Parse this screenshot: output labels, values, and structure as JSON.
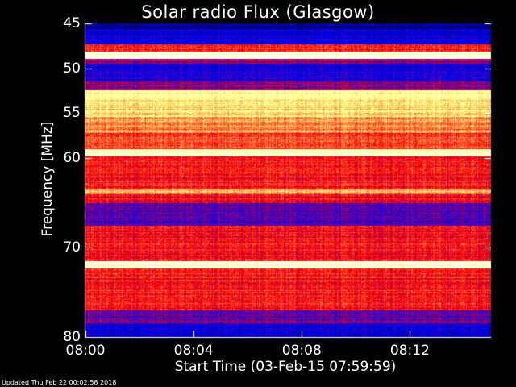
{
  "chart_data": {
    "type": "heatmap",
    "title": "Solar radio Flux (Glasgow)",
    "xlabel": "Start Time (03-Feb-15 07:59:59)",
    "ylabel": "Frequency [MHz]",
    "y_axis_range": [
      45,
      80
    ],
    "y_axis_inverted": true,
    "x_axis_range_minutes": [
      0,
      15
    ],
    "y_ticks": [
      {
        "value": 45,
        "label": "45"
      },
      {
        "value": 50,
        "label": "50"
      },
      {
        "value": 55,
        "label": "55"
      },
      {
        "value": 60,
        "label": "60"
      },
      {
        "value": 70,
        "label": "70"
      },
      {
        "value": 80,
        "label": "80"
      }
    ],
    "x_ticks": [
      {
        "minute": 0,
        "label": "08:00"
      },
      {
        "minute": 4,
        "label": "08:04"
      },
      {
        "minute": 8,
        "label": "08:08"
      },
      {
        "minute": 12,
        "label": "08:12"
      }
    ],
    "colormap": [
      "#000040",
      "#0000ff",
      "#ff0000",
      "#ffff80",
      "#ffffff"
    ],
    "frequency_bands": [
      {
        "from": 45.0,
        "to": 45.6,
        "level": 0.12
      },
      {
        "from": 45.6,
        "to": 47.3,
        "level": 0.22
      },
      {
        "from": 47.3,
        "to": 48.1,
        "level": 0.55
      },
      {
        "from": 48.1,
        "to": 48.9,
        "level": 0.93
      },
      {
        "from": 48.9,
        "to": 49.5,
        "level": 0.4
      },
      {
        "from": 49.5,
        "to": 51.4,
        "level": 0.25
      },
      {
        "from": 51.4,
        "to": 52.4,
        "level": 0.38
      },
      {
        "from": 52.4,
        "to": 53.4,
        "level": 0.8
      },
      {
        "from": 53.4,
        "to": 55.4,
        "level": 0.72
      },
      {
        "from": 55.4,
        "to": 57.2,
        "level": 0.63
      },
      {
        "from": 57.2,
        "to": 59.0,
        "level": 0.55
      },
      {
        "from": 59.0,
        "to": 59.8,
        "level": 0.88
      },
      {
        "from": 59.8,
        "to": 63.5,
        "level": 0.52
      },
      {
        "from": 63.5,
        "to": 64.0,
        "level": 0.66
      },
      {
        "from": 64.0,
        "to": 65.0,
        "level": 0.5
      },
      {
        "from": 65.0,
        "to": 67.5,
        "level": 0.32
      },
      {
        "from": 67.5,
        "to": 71.5,
        "level": 0.5
      },
      {
        "from": 71.5,
        "to": 72.3,
        "level": 0.92
      },
      {
        "from": 72.3,
        "to": 77.0,
        "level": 0.52
      },
      {
        "from": 77.0,
        "to": 78.5,
        "level": 0.35
      },
      {
        "from": 78.5,
        "to": 80.0,
        "level": 0.22
      }
    ],
    "footer": "Updated Thu Feb 22 00:02:58 2018"
  }
}
